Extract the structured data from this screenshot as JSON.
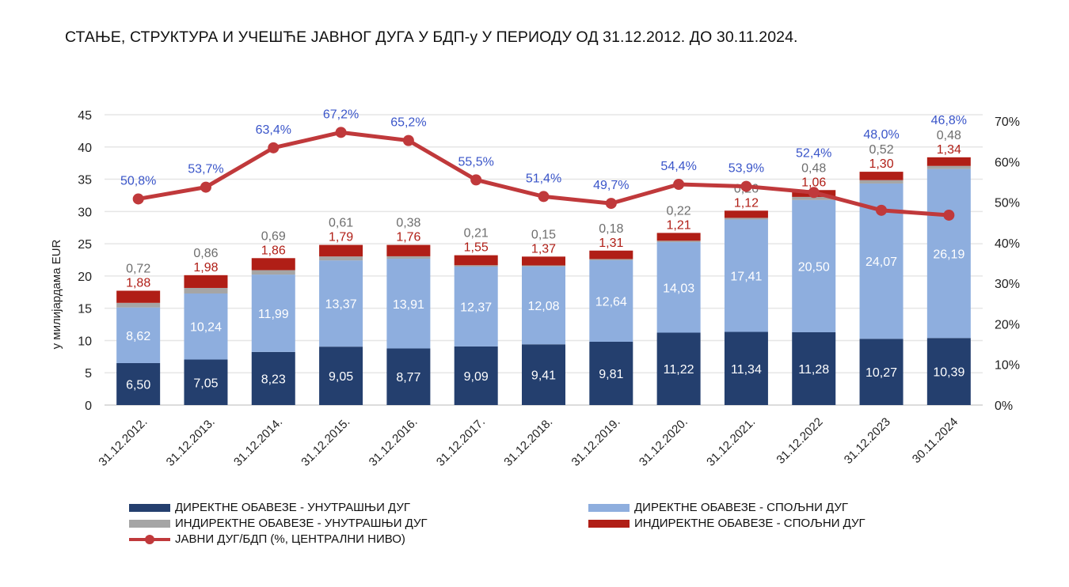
{
  "title": "СТАЊЕ, СТРУКТУРА И УЧЕШЋЕ ЈАВНОГ ДУГА У БДП-у У ПЕРИОДУ ОД 31.12.2012. ДО 30.11.2024.",
  "chart_data": {
    "type": "bar",
    "stacked": true,
    "title": "СТАЊЕ, СТРУКТУРА И УЧЕШЋЕ ЈАВНОГ ДУГА У БДП-у У ПЕРИОДУ ОД 31.12.2012. ДО 30.11.2024.",
    "ylabel": "у милијардама EUR",
    "ylim": [
      0,
      45
    ],
    "yticks": [
      "0",
      "5",
      "10",
      "15",
      "20",
      "25",
      "30",
      "35",
      "40",
      "45"
    ],
    "y2lim": [
      0,
      70
    ],
    "y2ticks": [
      "0%",
      "10%",
      "20%",
      "30%",
      "40%",
      "50%",
      "60%",
      "70%"
    ],
    "categories": [
      "31.12.2012.",
      "31.12.2013.",
      "31.12.2014.",
      "31.12.2015.",
      "31.12.2016.",
      "31.12.2017.",
      "31.12.2018.",
      "31.12.2019.",
      "31.12.2020.",
      "31.12.2021.",
      "31.12.2022",
      "31.12.2023",
      "30.11.2024"
    ],
    "series": [
      {
        "name": "ДИРЕКТНЕ ОБАВЕЗЕ - УНУТРАШЊИ ДУГ",
        "color": "#243f6e",
        "values": [
          6.5,
          7.05,
          8.23,
          9.05,
          8.77,
          9.09,
          9.41,
          9.81,
          11.22,
          11.34,
          11.28,
          10.27,
          10.39
        ],
        "labels": [
          "6,50",
          "7,05",
          "8,23",
          "9,05",
          "8,77",
          "9,09",
          "9,41",
          "9,81",
          "11,22",
          "11,34",
          "11,28",
          "10,27",
          "10,39"
        ]
      },
      {
        "name": "ДИРЕКТНЕ ОБАВЕЗЕ - СПОЉНИ ДУГ",
        "color": "#8eaede",
        "values": [
          8.62,
          10.24,
          11.99,
          13.37,
          13.91,
          12.37,
          12.08,
          12.64,
          14.03,
          17.41,
          20.5,
          24.07,
          26.19
        ],
        "labels": [
          "8,62",
          "10,24",
          "11,99",
          "13,37",
          "13,91",
          "12,37",
          "12,08",
          "12,64",
          "14,03",
          "17,41",
          "20,50",
          "24,07",
          "26,19"
        ]
      },
      {
        "name": "ИНДИРЕКТНЕ ОБАВЕЗЕ  - УНУТРАШЊИ ДУГ",
        "color": "#a5a5a5",
        "values": [
          0.72,
          0.86,
          0.69,
          0.61,
          0.38,
          0.21,
          0.15,
          0.18,
          0.22,
          0.26,
          0.48,
          0.52,
          0.48
        ],
        "labels": [
          "0,72",
          "0,86",
          "0,69",
          "0,61",
          "0,38",
          "0,21",
          "0,15",
          "0,18",
          "0,22",
          "0,26",
          "0,48",
          "0,52",
          "0,48"
        ]
      },
      {
        "name": "ИНДИРЕКТНЕ ОБАВЕЗЕ  - СПОЉНИ ДУГ",
        "color": "#b01e16",
        "values": [
          1.88,
          1.98,
          1.86,
          1.79,
          1.76,
          1.55,
          1.37,
          1.31,
          1.21,
          1.12,
          1.06,
          1.3,
          1.34
        ],
        "labels": [
          "1,88",
          "1,98",
          "1,86",
          "1,79",
          "1,76",
          "1,55",
          "1,37",
          "1,31",
          "1,21",
          "1,12",
          "1,06",
          "1,30",
          "1,34"
        ]
      }
    ],
    "line": {
      "name": "ЈАВНИ ДУГ/БДП (%, ЦЕНТРАЛНИ НИВО)",
      "color": "#c0393b",
      "label_color": "#3a55c9",
      "values": [
        50.8,
        53.7,
        63.4,
        67.2,
        65.2,
        55.5,
        51.4,
        49.7,
        54.4,
        53.9,
        52.4,
        48.0,
        46.8
      ],
      "labels": [
        "50,8%",
        "53,7%",
        "63,4%",
        "67,2%",
        "65,2%",
        "55,5%",
        "51,4%",
        "49,7%",
        "54,4%",
        "53,9%",
        "52,4%",
        "48,0%",
        "46,8%"
      ]
    },
    "grid": true,
    "legend": "bottom"
  }
}
